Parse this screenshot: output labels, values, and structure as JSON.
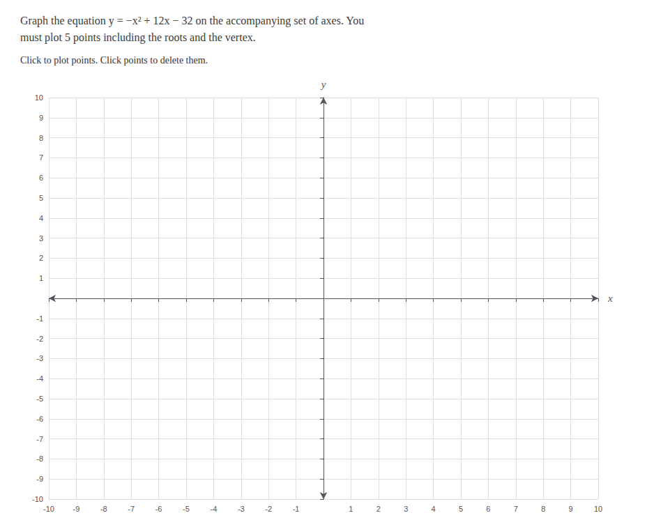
{
  "chart_data": {
    "type": "scatter",
    "title": "Graph the equation y = −x² + 12x − 32 on the accompanying set of axes. You\nmust plot 5 points including the roots and the vertex.",
    "subtitle": "Click to plot points. Click points to delete them.",
    "xlabel": "x",
    "ylabel": "y",
    "xlim": [
      -10,
      10
    ],
    "ylim": [
      -10,
      10
    ],
    "xticks": [
      -10,
      -9,
      -8,
      -7,
      -6,
      -5,
      -4,
      -3,
      -2,
      -1,
      1,
      2,
      3,
      4,
      5,
      6,
      7,
      8,
      9,
      10
    ],
    "yticks": [
      -10,
      -9,
      -8,
      -7,
      -6,
      -5,
      -4,
      -3,
      -2,
      -1,
      1,
      2,
      3,
      4,
      5,
      6,
      7,
      8,
      9,
      10
    ],
    "grid": true
  }
}
